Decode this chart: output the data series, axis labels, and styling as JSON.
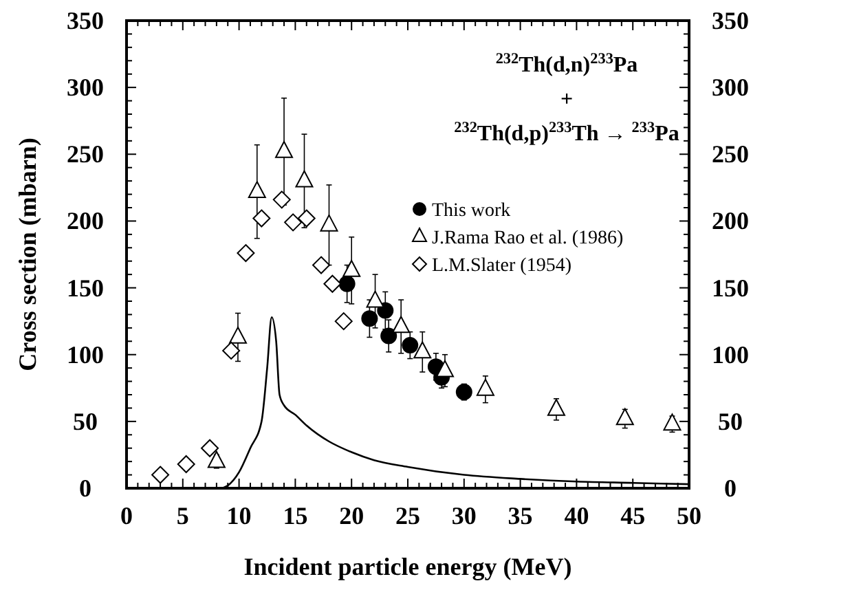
{
  "chart_data": {
    "type": "scatter",
    "xlabel": "Incident particle energy (MeV)",
    "ylabel": "Cross section (mbarn)",
    "annotations": [
      "$^{232}$Th(d,n)$^{233}$Pa",
      "+",
      "$^{232}$Th(d,p)$^{233}$Th → $^{233}$Pa"
    ],
    "xlim": [
      0,
      50
    ],
    "ylim": [
      0,
      350
    ],
    "y2lim": [
      0,
      350
    ],
    "xticks": [
      0,
      {
        "value": 1,
        "label": null
      },
      {
        "value": 2,
        "label": null
      },
      {
        "value": 3,
        "label": null
      },
      {
        "value": 4,
        "label": null
      },
      5,
      {
        "value": 6,
        "label": null
      },
      {
        "value": 7,
        "label": null
      },
      {
        "value": 8,
        "label": null
      },
      {
        "value": 9,
        "label": null
      },
      10,
      {
        "value": 11,
        "label": null
      },
      {
        "value": 12,
        "label": null
      },
      {
        "value": 13,
        "label": null
      },
      {
        "value": 14,
        "label": null
      },
      15,
      {
        "value": 16,
        "label": null
      },
      {
        "value": 17,
        "label": null
      },
      {
        "value": 18,
        "label": null
      },
      {
        "value": 19,
        "label": null
      },
      20,
      {
        "value": 21,
        "label": null
      },
      {
        "value": 22,
        "label": null
      },
      {
        "value": 23,
        "label": null
      },
      {
        "value": 24,
        "label": null
      },
      25,
      {
        "value": 26,
        "label": null
      },
      {
        "value": 27,
        "label": null
      },
      {
        "value": 28,
        "label": null
      },
      {
        "value": 29,
        "label": null
      },
      30,
      {
        "value": 31,
        "label": null
      },
      {
        "value": 32,
        "label": null
      },
      {
        "value": 33,
        "label": null
      },
      {
        "value": 34,
        "label": null
      },
      35,
      {
        "value": 36,
        "label": null
      },
      {
        "value": 37,
        "label": null
      },
      {
        "value": 38,
        "label": null
      },
      {
        "value": 39,
        "label": null
      },
      40,
      {
        "value": 41,
        "label": null
      },
      {
        "value": 42,
        "label": null
      },
      {
        "value": 43,
        "label": null
      },
      {
        "value": 44,
        "label": null
      },
      45,
      {
        "value": 46,
        "label": null
      },
      {
        "value": 47,
        "label": null
      },
      {
        "value": 48,
        "label": null
      },
      {
        "value": 49,
        "label": null
      },
      50
    ],
    "yticks": [
      0,
      {
        "value": 10,
        "label": null
      },
      {
        "value": 20,
        "label": null
      },
      {
        "value": 30,
        "label": null
      },
      {
        "value": 40,
        "label": null
      },
      50,
      {
        "value": 60,
        "label": null
      },
      {
        "value": 70,
        "label": null
      },
      {
        "value": 80,
        "label": null
      },
      {
        "value": 90,
        "label": null
      },
      100,
      {
        "value": 110,
        "label": null
      },
      {
        "value": 120,
        "label": null
      },
      {
        "value": 130,
        "label": null
      },
      {
        "value": 140,
        "label": null
      },
      150,
      {
        "value": 160,
        "label": null
      },
      {
        "value": 170,
        "label": null
      },
      {
        "value": 180,
        "label": null
      },
      {
        "value": 190,
        "label": null
      },
      200,
      {
        "value": 210,
        "label": null
      },
      {
        "value": 220,
        "label": null
      },
      {
        "value": 230,
        "label": null
      },
      {
        "value": 240,
        "label": null
      },
      250,
      {
        "value": 260,
        "label": null
      },
      {
        "value": 270,
        "label": null
      },
      {
        "value": 280,
        "label": null
      },
      {
        "value": 290,
        "label": null
      },
      300,
      {
        "value": 310,
        "label": null
      },
      {
        "value": 320,
        "label": null
      },
      {
        "value": 330,
        "label": null
      },
      {
        "value": 340,
        "label": null
      },
      350
    ],
    "y2ticks": [
      0,
      50,
      100,
      150,
      200,
      250,
      300,
      350
    ],
    "legend": "top right",
    "grid": false,
    "series": [
      {
        "name": "This work",
        "marker": "circle",
        "color": "#000000",
        "x": [
          19.6,
          21.6,
          23,
          23.3,
          25.2,
          27.5,
          28,
          30
        ],
        "values": [
          153,
          127,
          133,
          114,
          107,
          91,
          83,
          72
        ],
        "errors": [
          14,
          14,
          14,
          12,
          10,
          10,
          8,
          6
        ]
      },
      {
        "type": "line",
        "marker": "none",
        "line_style": "solid",
        "color": "#000000",
        "x": [
          8.5,
          9,
          10,
          11,
          12,
          12.5,
          12.9,
          13.3,
          13.6,
          14,
          15,
          16,
          18,
          20,
          22,
          25,
          30,
          35,
          40,
          45,
          50
        ],
        "values": [
          0,
          2,
          12,
          30,
          50,
          90,
          128,
          110,
          70,
          62,
          55,
          47,
          35,
          27,
          21,
          16,
          10,
          7,
          5,
          4,
          3
        ]
      },
      {
        "name": "J.Rama Rao et al. (1986)",
        "marker": "triangle",
        "color": "#000000",
        "x": [
          8,
          9.9,
          11.6,
          14,
          15.8,
          18,
          20,
          22.1,
          24.4,
          26.3,
          28.3,
          31.9,
          38.2,
          44.3,
          48.5
        ],
        "values": [
          20,
          113,
          222,
          252,
          230,
          197,
          163,
          140,
          121,
          102,
          88,
          74,
          59,
          52,
          48
        ],
        "errors": [
          5,
          18,
          35,
          40,
          35,
          30,
          25,
          20,
          20,
          15,
          12,
          10,
          8,
          7,
          6
        ]
      },
      {
        "name": "L.M.Slater (1954)",
        "marker": "diamond",
        "color": "#000000",
        "x": [
          3,
          5.3,
          7.4,
          9.3,
          10.6,
          12,
          13.8,
          14.8,
          16,
          17.3,
          18.3,
          19.3
        ],
        "values": [
          10,
          18,
          30,
          103,
          176,
          202,
          216,
          199,
          202,
          167,
          153,
          125
        ]
      }
    ]
  }
}
